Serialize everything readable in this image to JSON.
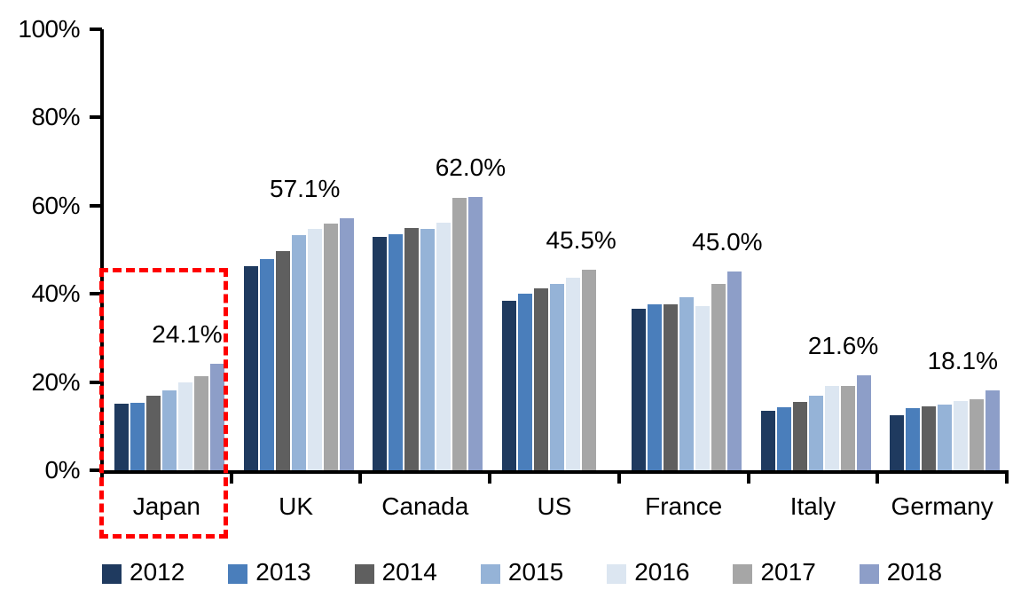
{
  "chart_data": {
    "type": "bar",
    "title": "",
    "xlabel": "",
    "ylabel": "",
    "categories": [
      "Japan",
      "UK",
      "Canada",
      "US",
      "France",
      "Italy",
      "Germany"
    ],
    "series": [
      {
        "name": "2012",
        "color": "#1F3A5F",
        "values": [
          15.1,
          46.3,
          53.0,
          38.4,
          36.6,
          13.5,
          12.5
        ]
      },
      {
        "name": "2013",
        "color": "#4A7EBB",
        "values": [
          15.3,
          47.8,
          53.5,
          40.1,
          37.7,
          14.2,
          14.1
        ]
      },
      {
        "name": "2014",
        "color": "#5F5F5F",
        "values": [
          16.9,
          49.8,
          55.0,
          41.2,
          37.6,
          15.5,
          14.4
        ]
      },
      {
        "name": "2015",
        "color": "#95B3D7",
        "values": [
          18.2,
          53.3,
          54.7,
          42.2,
          39.2,
          17.0,
          14.9
        ]
      },
      {
        "name": "2016",
        "color": "#DCE6F1",
        "values": [
          20.0,
          54.8,
          56.1,
          43.7,
          37.3,
          19.1,
          15.6
        ]
      },
      {
        "name": "2017",
        "color": "#A6A6A6",
        "values": [
          21.3,
          55.9,
          61.7,
          45.5,
          42.3,
          19.2,
          16.0
        ]
      },
      {
        "name": "2018",
        "color": "#8D9EC8",
        "values": [
          24.1,
          57.1,
          62.0,
          null,
          45.0,
          21.6,
          18.1
        ]
      }
    ],
    "group_value_labels": [
      "24.1%",
      "57.1%",
      "62.0%",
      "45.5%",
      "45.0%",
      "21.6%",
      "18.1%"
    ],
    "y_ticks": [
      "0%",
      "20%",
      "40%",
      "60%",
      "80%",
      "100%"
    ],
    "ylim": [
      0,
      100
    ],
    "grid": false,
    "legend_position": "bottom",
    "annotations": {
      "highlight_box_category": "Japan",
      "highlight_box_color": "#FF0000",
      "highlight_box_style": "dashed"
    }
  }
}
